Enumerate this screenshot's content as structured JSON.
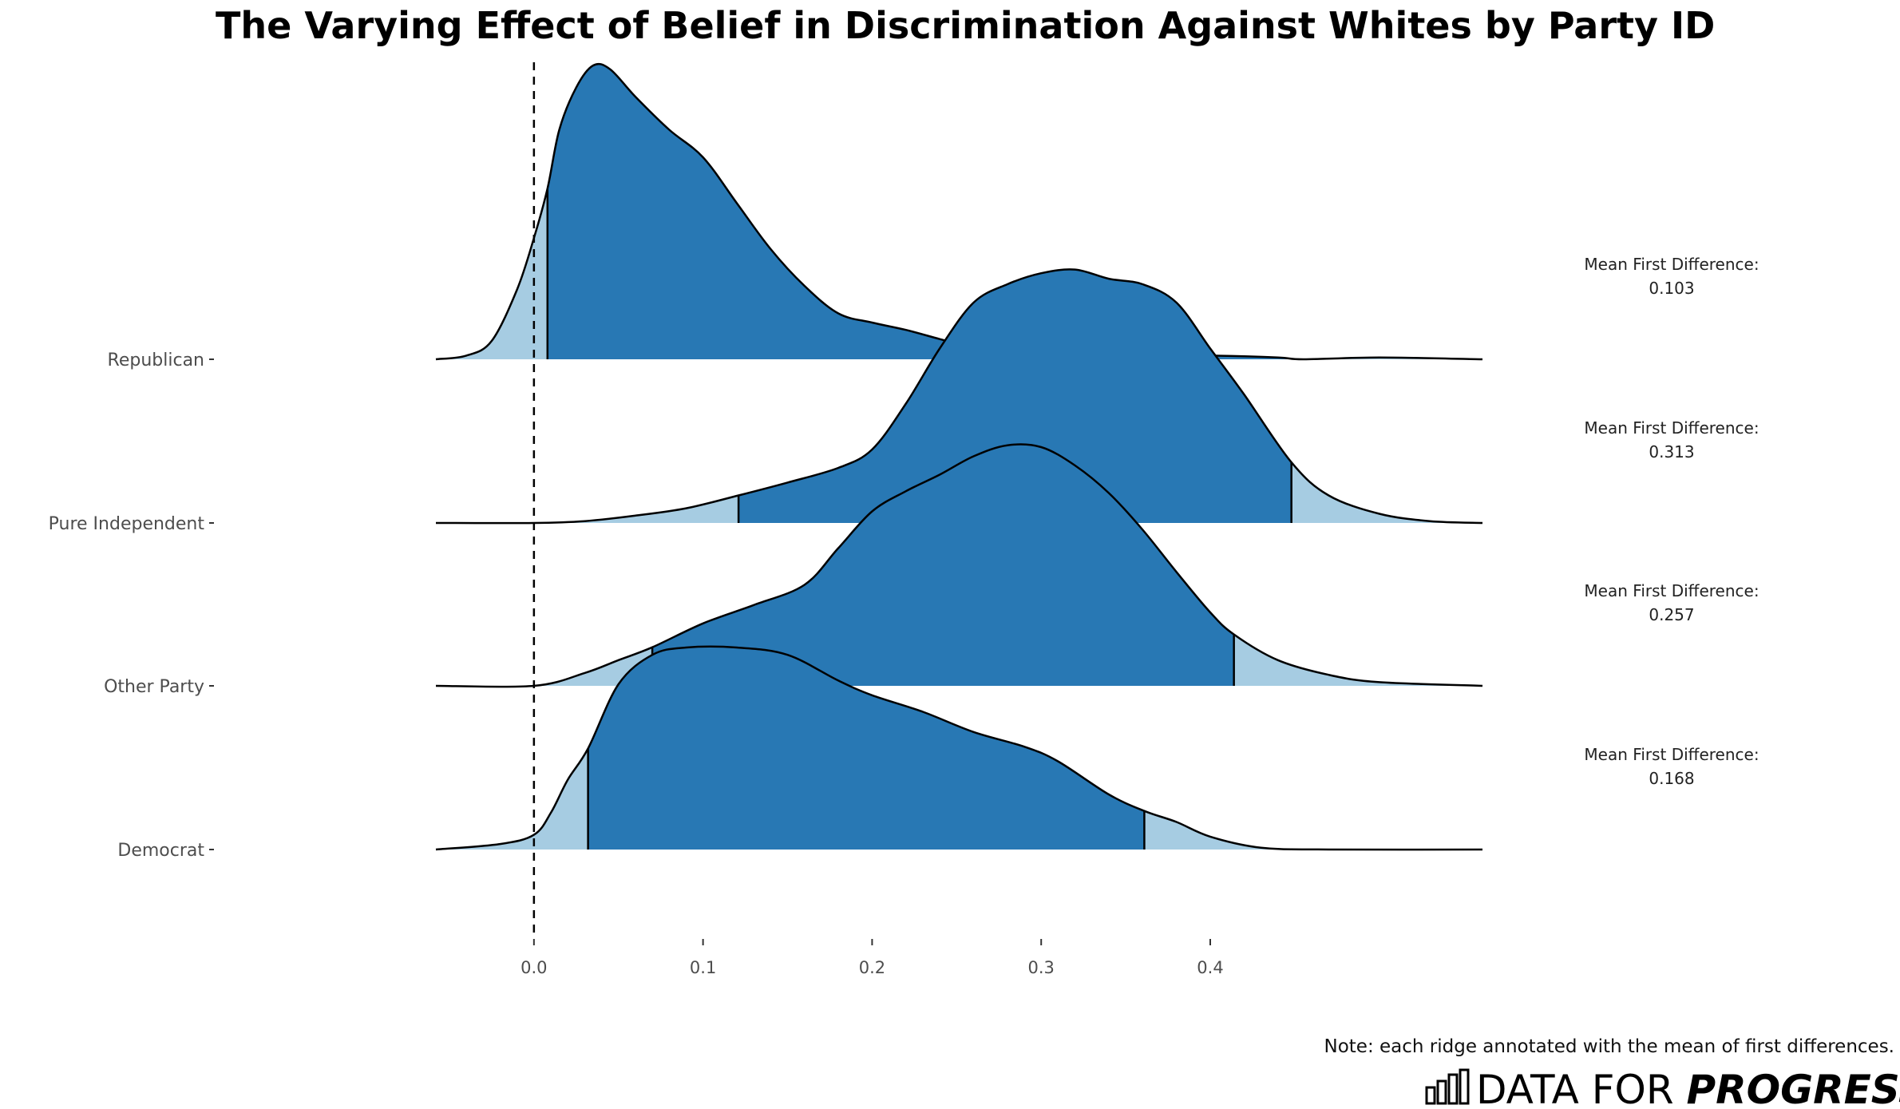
{
  "chart_data": {
    "type": "area",
    "subtype": "ridgeline",
    "title": "The Varying Effect of Belief in Discrimination Against Whites by Party ID",
    "xlabel": "",
    "ylabel": "",
    "xlim": [
      -0.058,
      0.561
    ],
    "x_ticks": [
      "0.0",
      "0.1",
      "0.2",
      "0.3",
      "0.4"
    ],
    "x_tick_values": [
      0.0,
      0.1,
      0.2,
      0.3,
      0.4
    ],
    "reference_line": {
      "x": 0.0,
      "style": "dashed"
    },
    "colors": {
      "inner": "#2878b4",
      "outer": "#a6cce2",
      "outline": "#000000"
    },
    "annotation_label": "Mean First Difference:",
    "series": [
      {
        "name": "Republican",
        "mean": "0.103",
        "interval": [
          0.008,
          0.455
        ],
        "density": [
          [
            -0.058,
            0.0
          ],
          [
            -0.04,
            0.02
          ],
          [
            -0.025,
            0.1
          ],
          [
            -0.01,
            0.38
          ],
          [
            0.0,
            0.66
          ],
          [
            0.008,
            0.93
          ],
          [
            0.015,
            1.25
          ],
          [
            0.025,
            1.48
          ],
          [
            0.035,
            1.6
          ],
          [
            0.045,
            1.58
          ],
          [
            0.06,
            1.43
          ],
          [
            0.08,
            1.25
          ],
          [
            0.1,
            1.1
          ],
          [
            0.12,
            0.85
          ],
          [
            0.14,
            0.6
          ],
          [
            0.16,
            0.4
          ],
          [
            0.18,
            0.25
          ],
          [
            0.2,
            0.2
          ],
          [
            0.22,
            0.16
          ],
          [
            0.24,
            0.11
          ],
          [
            0.26,
            0.06
          ],
          [
            0.28,
            0.02
          ],
          [
            0.3,
            0.0
          ],
          [
            0.32,
            0.01
          ],
          [
            0.36,
            0.02
          ],
          [
            0.4,
            0.02
          ],
          [
            0.44,
            0.01
          ],
          [
            0.455,
            0.0
          ],
          [
            0.5,
            0.01
          ],
          [
            0.561,
            0.0
          ]
        ]
      },
      {
        "name": "Pure Independent",
        "mean": "0.313",
        "interval": [
          0.121,
          0.448
        ],
        "density": [
          [
            -0.058,
            0.0
          ],
          [
            0.0,
            0.0
          ],
          [
            0.03,
            0.01
          ],
          [
            0.06,
            0.04
          ],
          [
            0.09,
            0.08
          ],
          [
            0.121,
            0.15
          ],
          [
            0.15,
            0.22
          ],
          [
            0.18,
            0.3
          ],
          [
            0.2,
            0.4
          ],
          [
            0.22,
            0.65
          ],
          [
            0.24,
            0.95
          ],
          [
            0.26,
            1.2
          ],
          [
            0.28,
            1.3
          ],
          [
            0.3,
            1.36
          ],
          [
            0.32,
            1.38
          ],
          [
            0.34,
            1.33
          ],
          [
            0.36,
            1.3
          ],
          [
            0.38,
            1.2
          ],
          [
            0.4,
            0.95
          ],
          [
            0.42,
            0.7
          ],
          [
            0.448,
            0.33
          ],
          [
            0.47,
            0.15
          ],
          [
            0.5,
            0.05
          ],
          [
            0.53,
            0.01
          ],
          [
            0.561,
            0.0
          ]
        ]
      },
      {
        "name": "Other Party",
        "mean": "0.257",
        "interval": [
          0.07,
          0.414
        ],
        "density": [
          [
            -0.058,
            0.0
          ],
          [
            0.0,
            0.0
          ],
          [
            0.03,
            0.07
          ],
          [
            0.05,
            0.14
          ],
          [
            0.07,
            0.21
          ],
          [
            0.1,
            0.34
          ],
          [
            0.13,
            0.44
          ],
          [
            0.16,
            0.55
          ],
          [
            0.18,
            0.75
          ],
          [
            0.2,
            0.95
          ],
          [
            0.22,
            1.06
          ],
          [
            0.24,
            1.15
          ],
          [
            0.26,
            1.25
          ],
          [
            0.28,
            1.31
          ],
          [
            0.3,
            1.3
          ],
          [
            0.32,
            1.2
          ],
          [
            0.34,
            1.05
          ],
          [
            0.36,
            0.85
          ],
          [
            0.38,
            0.62
          ],
          [
            0.4,
            0.4
          ],
          [
            0.414,
            0.28
          ],
          [
            0.44,
            0.14
          ],
          [
            0.47,
            0.06
          ],
          [
            0.5,
            0.02
          ],
          [
            0.561,
            0.0
          ]
        ]
      },
      {
        "name": "Democrat",
        "mean": "0.168",
        "interval": [
          0.032,
          0.361
        ],
        "density": [
          [
            -0.058,
            0.0
          ],
          [
            -0.02,
            0.03
          ],
          [
            0.0,
            0.08
          ],
          [
            0.01,
            0.2
          ],
          [
            0.02,
            0.38
          ],
          [
            0.032,
            0.55
          ],
          [
            0.05,
            0.9
          ],
          [
            0.07,
            1.06
          ],
          [
            0.09,
            1.1
          ],
          [
            0.12,
            1.1
          ],
          [
            0.15,
            1.06
          ],
          [
            0.18,
            0.92
          ],
          [
            0.2,
            0.84
          ],
          [
            0.23,
            0.75
          ],
          [
            0.26,
            0.64
          ],
          [
            0.29,
            0.56
          ],
          [
            0.31,
            0.48
          ],
          [
            0.34,
            0.3
          ],
          [
            0.361,
            0.21
          ],
          [
            0.38,
            0.15
          ],
          [
            0.4,
            0.07
          ],
          [
            0.43,
            0.01
          ],
          [
            0.47,
            0.0
          ],
          [
            0.561,
            0.0
          ]
        ]
      }
    ]
  },
  "footer": {
    "note": "Note: each ridge annotated with the mean of first differences.",
    "brand_regular": "DATA FOR ",
    "brand_bold": "PROGRESS"
  }
}
